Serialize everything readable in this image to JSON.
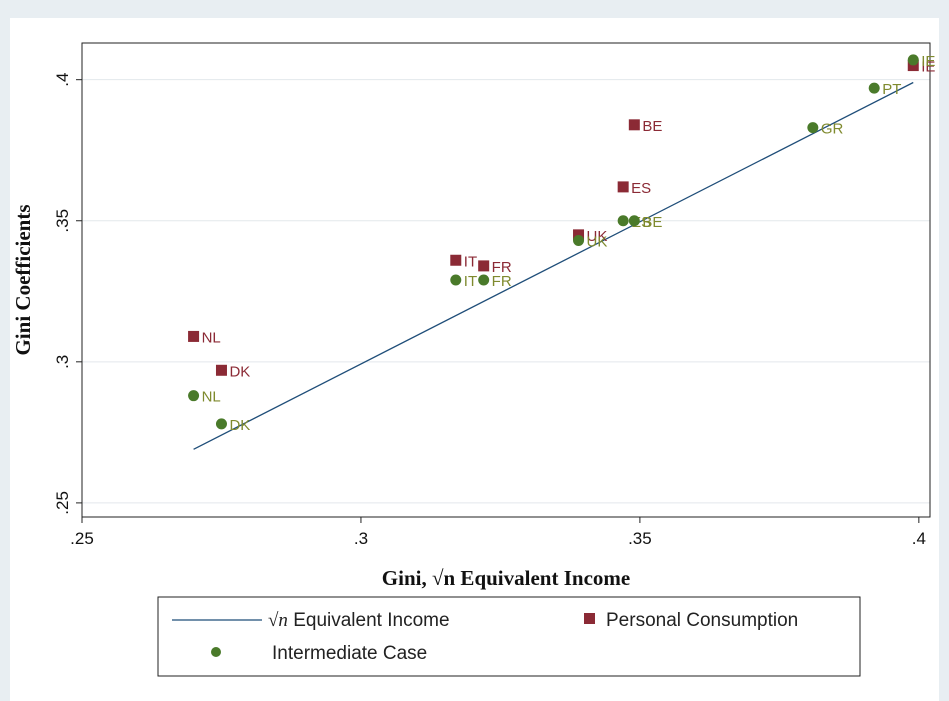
{
  "chart_data": {
    "type": "scatter",
    "xlabel": "Gini, √n Equivalent Income",
    "ylabel": "Gini Coefficients",
    "xlim": [
      0.25,
      0.402
    ],
    "ylim": [
      0.245,
      0.413
    ],
    "x_ticks": [
      {
        "value": 0.25,
        "label": ".25"
      },
      {
        "value": 0.3,
        "label": ".3"
      },
      {
        "value": 0.35,
        "label": ".35"
      },
      {
        "value": 0.4,
        "label": ".4"
      }
    ],
    "y_ticks": [
      {
        "value": 0.25,
        "label": ".25"
      },
      {
        "value": 0.3,
        "label": ".3"
      },
      {
        "value": 0.35,
        "label": ".35"
      },
      {
        "value": 0.4,
        "label": ".4"
      }
    ],
    "grid": true,
    "legend_position": "bottom",
    "colors": {
      "plot_background": "#ffffff",
      "outer_background": "#e8eef2",
      "line": "#1f4e79",
      "personal": "#8b2a35",
      "intermediate": "#4a7a2a",
      "intermediate_label": "#7f8a2e"
    },
    "series": [
      {
        "name": "√n Equivalent Income",
        "kind": "line",
        "points": [
          [
            0.27,
            0.269
          ],
          [
            0.399,
            0.399
          ]
        ]
      },
      {
        "name": "Personal Consumption",
        "kind": "scatter",
        "marker": "square",
        "points": [
          {
            "label": "NL",
            "x": 0.27,
            "y": 0.309
          },
          {
            "label": "DK",
            "x": 0.275,
            "y": 0.297
          },
          {
            "label": "IT",
            "x": 0.317,
            "y": 0.336
          },
          {
            "label": "FR",
            "x": 0.322,
            "y": 0.334
          },
          {
            "label": "UK",
            "x": 0.339,
            "y": 0.345
          },
          {
            "label": "ES",
            "x": 0.347,
            "y": 0.362
          },
          {
            "label": "BE",
            "x": 0.349,
            "y": 0.384
          },
          {
            "label": "IE",
            "x": 0.399,
            "y": 0.405
          }
        ]
      },
      {
        "name": "Intermediate Case",
        "kind": "scatter",
        "marker": "circle",
        "points": [
          {
            "label": "NL",
            "x": 0.27,
            "y": 0.288
          },
          {
            "label": "DK",
            "x": 0.275,
            "y": 0.278
          },
          {
            "label": "IT",
            "x": 0.317,
            "y": 0.329
          },
          {
            "label": "FR",
            "x": 0.322,
            "y": 0.329
          },
          {
            "label": "UK",
            "x": 0.339,
            "y": 0.343
          },
          {
            "label": "ES",
            "x": 0.347,
            "y": 0.35
          },
          {
            "label": "BE",
            "x": 0.349,
            "y": 0.35
          },
          {
            "label": "GR",
            "x": 0.381,
            "y": 0.383
          },
          {
            "label": "PT",
            "x": 0.392,
            "y": 0.397
          },
          {
            "label": "IE",
            "x": 0.399,
            "y": 0.407
          }
        ]
      }
    ]
  },
  "legend": {
    "line_label_prefix": "√n",
    "line_label_rest": " Equivalent Income",
    "personal_label": "Personal Consumption",
    "intermediate_label": "Intermediate Case"
  }
}
